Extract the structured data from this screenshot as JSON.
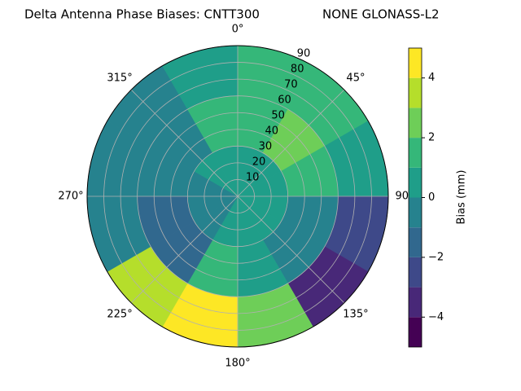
{
  "chart_data": {
    "type": "polar-contour",
    "title": "Delta Antenna Phase Biases: CNTT300",
    "subtitle": "NONE GLONASS-L2",
    "colorbar_label": "Bias (mm)",
    "azimuth_bins": [
      0,
      30,
      60,
      90,
      120,
      150,
      180,
      210,
      240,
      270,
      300,
      330,
      360
    ],
    "zenith_bins": [
      0,
      30,
      60,
      90
    ],
    "values": [
      [
        0.5,
        1.5,
        1
      ],
      [
        0.5,
        2,
        1.5
      ],
      [
        0.5,
        1,
        0.5
      ],
      [
        0,
        -0.5,
        -3
      ],
      [
        0,
        -1,
        -3.5
      ],
      [
        0,
        0.5,
        2
      ],
      [
        0,
        1,
        4
      ],
      [
        -0.5,
        -2,
        3
      ],
      [
        -0.5,
        -1.5,
        -1
      ],
      [
        -0.5,
        -1,
        -1
      ],
      [
        0,
        -0.5,
        -1
      ],
      [
        0.5,
        1,
        0.5
      ]
    ],
    "levels": [
      -5,
      -4,
      -3,
      -2,
      -1,
      0,
      1,
      2,
      3,
      4,
      5
    ],
    "colors": [
      "#440154",
      "#482878",
      "#3e4989",
      "#31688e",
      "#26828e",
      "#1f9e89",
      "#35b779",
      "#6ece58",
      "#b5de2b",
      "#fde725"
    ],
    "rlim": [
      0,
      90
    ],
    "rticks": [
      10,
      20,
      30,
      40,
      50,
      60,
      70,
      80,
      90
    ],
    "thetaticks": [
      {
        "value": 0,
        "label": "0°"
      },
      {
        "value": 45,
        "label": "45°"
      },
      {
        "value": 90,
        "label": "90°"
      },
      {
        "value": 135,
        "label": "135°"
      },
      {
        "value": 180,
        "label": "180°"
      },
      {
        "value": 225,
        "label": "225°"
      },
      {
        "value": 270,
        "label": "270°"
      },
      {
        "value": 315,
        "label": "315°"
      }
    ],
    "clim": [
      -5,
      5
    ],
    "cticks": [
      {
        "value": -4,
        "label": "−4"
      },
      {
        "value": -2,
        "label": "−2"
      },
      {
        "value": 0,
        "label": "0"
      },
      {
        "value": 2,
        "label": "2"
      },
      {
        "value": 4,
        "label": "4"
      }
    ],
    "grid": true
  }
}
